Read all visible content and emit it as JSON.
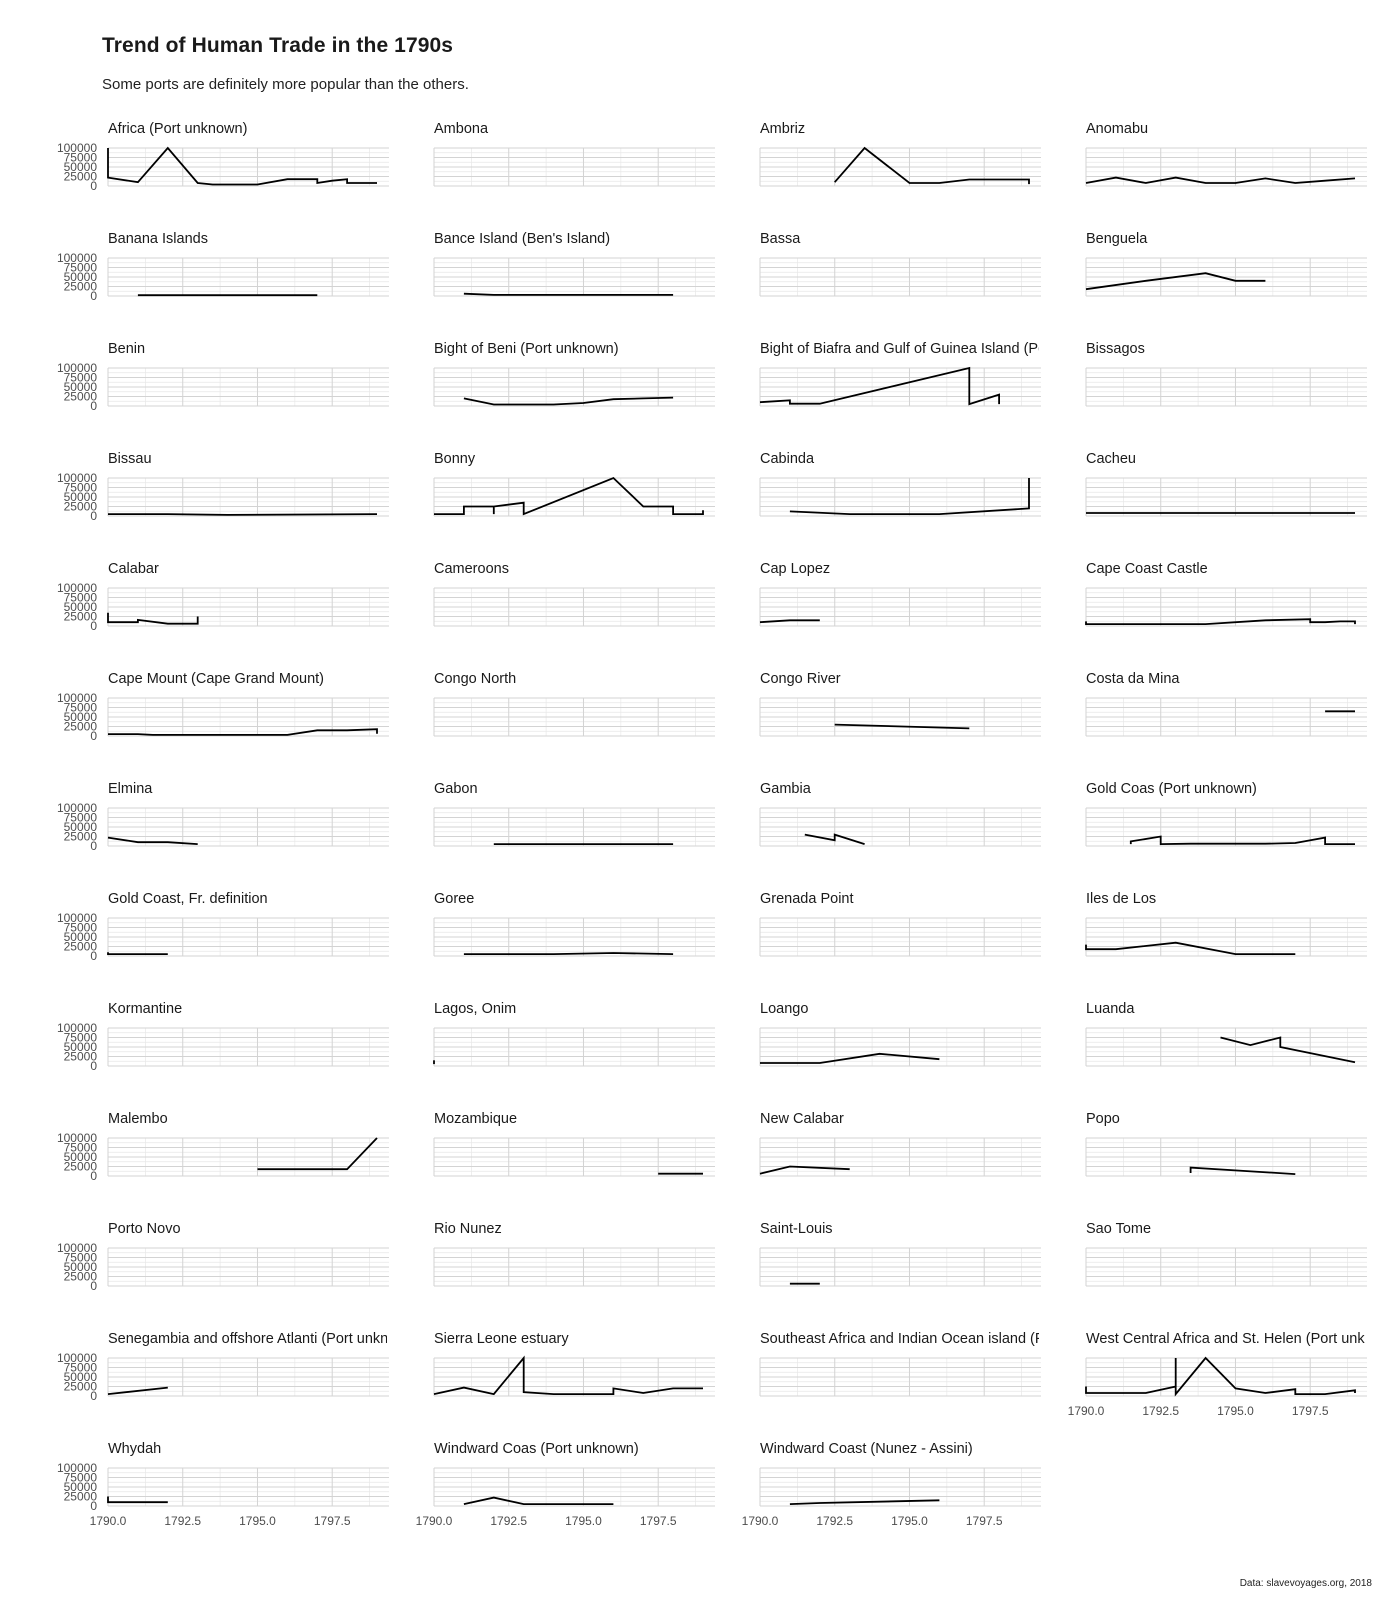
{
  "chart_data": {
    "type": "line",
    "title": "Trend of Human Trade in the 1790s",
    "subtitle": "Some ports are definitely more popular than the others.",
    "caption": "Data: slavevoyages.org, 2018",
    "xlabel": "",
    "ylabel": "",
    "xlim": [
      1790,
      1799.4
    ],
    "ylim": [
      0,
      100000
    ],
    "x_ticks": [
      1790.0,
      1792.5,
      1795.0,
      1797.5
    ],
    "x_tick_labels": [
      "1790.0",
      "1792.5",
      "1795.0",
      "1797.5"
    ],
    "y_ticks": [
      0,
      25000,
      50000,
      75000,
      100000
    ],
    "y_tick_labels": [
      "0",
      "25000",
      "50000",
      "75000",
      "100000"
    ],
    "grid": true,
    "legend": "none",
    "series": [
      {
        "name": "Africa (Port unknown)",
        "points": [
          [
            1790,
            100000
          ],
          [
            1790,
            22000
          ],
          [
            1791,
            10000
          ],
          [
            1792,
            100000
          ],
          [
            1793,
            8000
          ],
          [
            1793.5,
            4000
          ],
          [
            1794,
            4000
          ],
          [
            1795,
            4000
          ],
          [
            1796,
            18000
          ],
          [
            1797,
            18000
          ],
          [
            1797,
            8000
          ],
          [
            1797.5,
            14000
          ],
          [
            1798,
            18000
          ],
          [
            1798,
            8000
          ],
          [
            1799,
            8000
          ]
        ]
      },
      {
        "name": "Ambona",
        "points": []
      },
      {
        "name": "Ambriz",
        "points": [
          [
            1792.5,
            10000
          ],
          [
            1793.5,
            100000
          ],
          [
            1795,
            8000
          ],
          [
            1796,
            8000
          ],
          [
            1797,
            17000
          ],
          [
            1798,
            17000
          ],
          [
            1799,
            17000
          ],
          [
            1799,
            5000
          ]
        ]
      },
      {
        "name": "Anomabu",
        "points": [
          [
            1790,
            8000
          ],
          [
            1791,
            22000
          ],
          [
            1792,
            8000
          ],
          [
            1793,
            22000
          ],
          [
            1794,
            8000
          ],
          [
            1795,
            8000
          ],
          [
            1796,
            20000
          ],
          [
            1797,
            8000
          ],
          [
            1798,
            14000
          ],
          [
            1799,
            20000
          ]
        ]
      },
      {
        "name": "Banana Islands",
        "points": [
          [
            1791,
            2000
          ],
          [
            1797,
            2000
          ]
        ]
      },
      {
        "name": "Bance Island (Ben's Island)",
        "points": [
          [
            1791,
            6000
          ],
          [
            1792,
            3000
          ],
          [
            1798,
            3000
          ]
        ]
      },
      {
        "name": "Bassa",
        "points": []
      },
      {
        "name": "Benguela",
        "points": [
          [
            1790,
            18000
          ],
          [
            1792,
            40000
          ],
          [
            1794,
            60000
          ],
          [
            1795,
            40000
          ],
          [
            1796,
            40000
          ]
        ]
      },
      {
        "name": "Benin",
        "points": []
      },
      {
        "name": "Bight of Beni (Port unknown)",
        "points": [
          [
            1791,
            20000
          ],
          [
            1792,
            4000
          ],
          [
            1794,
            4000
          ],
          [
            1795,
            8000
          ],
          [
            1796,
            18000
          ],
          [
            1797,
            20000
          ],
          [
            1798,
            22000
          ]
        ]
      },
      {
        "name": "Bight of Biafra and Gulf of Guinea Island (Port unknown)",
        "points": [
          [
            1790,
            10000
          ],
          [
            1791,
            15000
          ],
          [
            1791,
            6000
          ],
          [
            1792,
            6000
          ],
          [
            1797,
            100000
          ],
          [
            1797,
            5000
          ],
          [
            1798,
            30000
          ],
          [
            1798,
            5000
          ]
        ]
      },
      {
        "name": "Bissagos",
        "points": []
      },
      {
        "name": "Bissau",
        "points": [
          [
            1790,
            5000
          ],
          [
            1792,
            5000
          ],
          [
            1794,
            3000
          ],
          [
            1799,
            5000
          ]
        ]
      },
      {
        "name": "Bonny",
        "points": [
          [
            1790,
            5000
          ],
          [
            1791,
            5000
          ],
          [
            1791,
            25000
          ],
          [
            1792,
            25000
          ],
          [
            1792,
            5000
          ],
          [
            1792,
            25000
          ],
          [
            1793,
            35000
          ],
          [
            1793,
            5000
          ],
          [
            1796,
            100000
          ],
          [
            1797,
            25000
          ],
          [
            1798,
            25000
          ],
          [
            1798,
            5000
          ],
          [
            1799,
            5000
          ],
          [
            1799,
            15000
          ]
        ]
      },
      {
        "name": "Cabinda",
        "points": [
          [
            1791,
            12000
          ],
          [
            1793,
            5000
          ],
          [
            1796,
            5000
          ],
          [
            1799,
            20000
          ],
          [
            1799,
            100000
          ]
        ]
      },
      {
        "name": "Cacheu",
        "points": [
          [
            1790,
            8000
          ],
          [
            1799,
            8000
          ]
        ]
      },
      {
        "name": "Calabar",
        "points": [
          [
            1790,
            35000
          ],
          [
            1790,
            10000
          ],
          [
            1791,
            10000
          ],
          [
            1791,
            16000
          ],
          [
            1792,
            6000
          ],
          [
            1793,
            6000
          ],
          [
            1793,
            25000
          ]
        ]
      },
      {
        "name": "Cameroons",
        "points": []
      },
      {
        "name": "Cap Lopez",
        "points": [
          [
            1790,
            10000
          ],
          [
            1791,
            15000
          ],
          [
            1792,
            15000
          ]
        ]
      },
      {
        "name": "Cape Coast Castle",
        "points": [
          [
            1790,
            12000
          ],
          [
            1790,
            5000
          ],
          [
            1794,
            5000
          ],
          [
            1796,
            15000
          ],
          [
            1797.5,
            18000
          ],
          [
            1797.5,
            10000
          ],
          [
            1798,
            10000
          ],
          [
            1798.5,
            12000
          ],
          [
            1799,
            12000
          ],
          [
            1799,
            5000
          ]
        ]
      },
      {
        "name": "Cape Mount (Cape Grand Mount)",
        "points": [
          [
            1790,
            5000
          ],
          [
            1791,
            5000
          ],
          [
            1791.5,
            3000
          ],
          [
            1796,
            3000
          ],
          [
            1797,
            15000
          ],
          [
            1798,
            15000
          ],
          [
            1799,
            18000
          ],
          [
            1799,
            6000
          ]
        ]
      },
      {
        "name": "Congo North",
        "points": []
      },
      {
        "name": "Congo River",
        "points": [
          [
            1792.5,
            30000
          ],
          [
            1797,
            20000
          ]
        ]
      },
      {
        "name": "Costa da Mina",
        "points": [
          [
            1798,
            65000
          ],
          [
            1799,
            65000
          ]
        ]
      },
      {
        "name": "Elmina",
        "points": [
          [
            1790,
            22000
          ],
          [
            1791,
            10000
          ],
          [
            1792,
            10000
          ],
          [
            1793,
            5000
          ]
        ]
      },
      {
        "name": "Gabon",
        "points": [
          [
            1792,
            5000
          ],
          [
            1798,
            5000
          ]
        ]
      },
      {
        "name": "Gambia",
        "points": [
          [
            1791.5,
            30000
          ],
          [
            1792.5,
            15000
          ],
          [
            1792.5,
            30000
          ],
          [
            1793.5,
            5000
          ]
        ]
      },
      {
        "name": "Gold Coas (Port unknown)",
        "points": [
          [
            1791.5,
            5000
          ],
          [
            1791.5,
            12000
          ],
          [
            1792.5,
            25000
          ],
          [
            1792.5,
            5000
          ],
          [
            1793.5,
            6000
          ],
          [
            1796,
            6000
          ],
          [
            1797,
            8000
          ],
          [
            1798,
            22000
          ],
          [
            1798,
            5000
          ],
          [
            1799,
            5000
          ]
        ]
      },
      {
        "name": "Gold Coast, Fr. definition",
        "points": [
          [
            1790,
            10000
          ],
          [
            1790,
            5000
          ],
          [
            1792,
            5000
          ]
        ]
      },
      {
        "name": "Goree",
        "points": [
          [
            1791,
            5000
          ],
          [
            1794,
            5000
          ],
          [
            1796,
            8000
          ],
          [
            1798,
            5000
          ]
        ]
      },
      {
        "name": "Grenada Point",
        "points": []
      },
      {
        "name": "Iles de Los",
        "points": [
          [
            1790,
            30000
          ],
          [
            1790,
            18000
          ],
          [
            1791,
            18000
          ],
          [
            1793,
            35000
          ],
          [
            1795,
            5000
          ],
          [
            1797,
            5000
          ]
        ]
      },
      {
        "name": "Kormantine",
        "points": []
      },
      {
        "name": "Lagos, Onim",
        "points": [
          [
            1790,
            15000
          ],
          [
            1790,
            5000
          ]
        ]
      },
      {
        "name": "Loango",
        "points": [
          [
            1790,
            8000
          ],
          [
            1792,
            8000
          ],
          [
            1794,
            32000
          ],
          [
            1796,
            18000
          ]
        ]
      },
      {
        "name": "Luanda",
        "points": [
          [
            1794.5,
            75000
          ],
          [
            1795.5,
            55000
          ],
          [
            1796.5,
            75000
          ],
          [
            1796.5,
            50000
          ],
          [
            1799,
            10000
          ]
        ]
      },
      {
        "name": "Malembo",
        "points": [
          [
            1795,
            18000
          ],
          [
            1798,
            18000
          ],
          [
            1799,
            100000
          ]
        ]
      },
      {
        "name": "Mozambique",
        "points": [
          [
            1797.5,
            6000
          ],
          [
            1799,
            6000
          ]
        ]
      },
      {
        "name": "New Calabar",
        "points": [
          [
            1790,
            6000
          ],
          [
            1791,
            25000
          ],
          [
            1793,
            18000
          ]
        ]
      },
      {
        "name": "Popo",
        "points": [
          [
            1793.5,
            8000
          ],
          [
            1793.5,
            22000
          ],
          [
            1797,
            5000
          ]
        ]
      },
      {
        "name": "Porto Novo",
        "points": []
      },
      {
        "name": "Rio Nunez",
        "points": []
      },
      {
        "name": "Saint-Louis",
        "points": [
          [
            1791,
            6000
          ],
          [
            1792,
            6000
          ]
        ]
      },
      {
        "name": "Sao Tome",
        "points": []
      },
      {
        "name": "Senegambia and offshore Atlanti (Port unknown)",
        "points": [
          [
            1790,
            5000
          ],
          [
            1792,
            22000
          ]
        ]
      },
      {
        "name": "Sierra Leone estuary",
        "points": [
          [
            1790,
            5000
          ],
          [
            1791,
            22000
          ],
          [
            1792,
            5000
          ],
          [
            1793,
            100000
          ],
          [
            1793,
            10000
          ],
          [
            1794,
            5000
          ],
          [
            1796,
            5000
          ],
          [
            1796,
            20000
          ],
          [
            1797,
            8000
          ],
          [
            1798,
            20000
          ],
          [
            1799,
            20000
          ]
        ]
      },
      {
        "name": "Southeast Africa and Indian Ocean island (Port unknown)",
        "points": []
      },
      {
        "name": "West Central Africa and St. Helen (Port unknown)",
        "points": [
          [
            1790,
            25000
          ],
          [
            1790,
            8000
          ],
          [
            1792,
            8000
          ],
          [
            1793,
            25000
          ],
          [
            1793,
            100000
          ],
          [
            1793,
            5000
          ],
          [
            1794,
            100000
          ],
          [
            1795,
            20000
          ],
          [
            1796,
            8000
          ],
          [
            1797,
            18000
          ],
          [
            1797,
            5000
          ],
          [
            1798,
            5000
          ],
          [
            1799,
            15000
          ],
          [
            1799,
            8000
          ]
        ]
      },
      {
        "name": "Whydah",
        "points": [
          [
            1790,
            25000
          ],
          [
            1790,
            10000
          ],
          [
            1792,
            10000
          ]
        ]
      },
      {
        "name": "Windward Coas (Port unknown)",
        "points": [
          [
            1791,
            5000
          ],
          [
            1792,
            22000
          ],
          [
            1793,
            5000
          ],
          [
            1796,
            5000
          ]
        ]
      },
      {
        "name": "Windward Coast (Nunez - Assini)",
        "points": [
          [
            1791,
            5000
          ],
          [
            1792,
            8000
          ],
          [
            1796,
            15000
          ]
        ]
      }
    ]
  }
}
